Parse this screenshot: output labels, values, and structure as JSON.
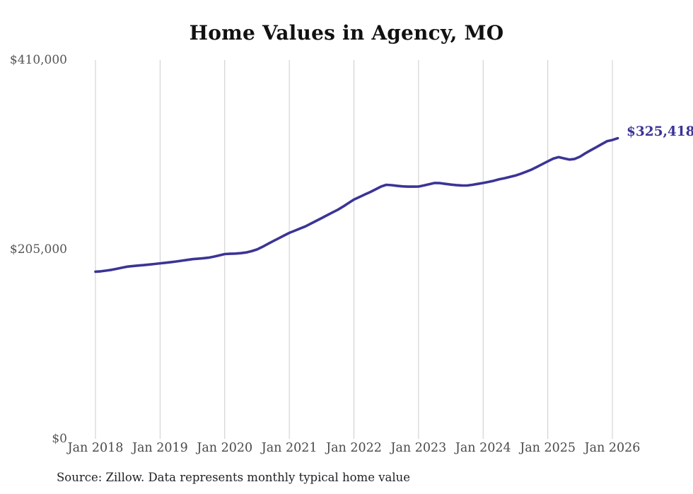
{
  "title": "Home Values in Agency, MO",
  "source_note": "Source: Zillow. Data represents monthly typical home value",
  "colors": {
    "line": "#3b3496",
    "end_label": "#3b3496",
    "grid": "#cccccc",
    "x_axis_text": "#4a4a4a",
    "y_axis_text": "#555555",
    "title_text": "#111111",
    "source_text": "#222222",
    "background": "#ffffff"
  },
  "chart_data": {
    "type": "line",
    "title": "Home Values in Agency, MO",
    "xlabel": "",
    "ylabel": "",
    "ylim": [
      0,
      410000
    ],
    "grid": "vertical-only",
    "legend": "none",
    "last_value_label": "$325,418",
    "last_value": 325418,
    "y_ticks": [
      {
        "label": "$0",
        "value": 0
      },
      {
        "label": "$205,000",
        "value": 205000
      },
      {
        "label": "$410,000",
        "value": 410000
      }
    ],
    "x_ticks": [
      {
        "label": "Jan 2018",
        "month_index": 0
      },
      {
        "label": "Jan 2019",
        "month_index": 12
      },
      {
        "label": "Jan 2020",
        "month_index": 24
      },
      {
        "label": "Jan 2021",
        "month_index": 36
      },
      {
        "label": "Jan 2022",
        "month_index": 48
      },
      {
        "label": "Jan 2023",
        "month_index": 60
      },
      {
        "label": "Jan 2024",
        "month_index": 72
      },
      {
        "label": "Jan 2025",
        "month_index": 84
      },
      {
        "label": "Jan 2026",
        "month_index": 96
      }
    ],
    "series": [
      {
        "name": "Typical home value",
        "start": "Jan 2018",
        "frequency": "monthly",
        "values": [
          181000,
          181400,
          182100,
          183000,
          184200,
          185400,
          186500,
          187100,
          187600,
          188100,
          188700,
          189300,
          190000,
          190600,
          191300,
          192000,
          192800,
          193700,
          194500,
          195000,
          195500,
          196100,
          197300,
          198600,
          200000,
          200300,
          200600,
          201000,
          201800,
          203200,
          205000,
          207800,
          211000,
          214000,
          217000,
          220000,
          223000,
          225300,
          227700,
          230000,
          233000,
          236000,
          239000,
          242000,
          245000,
          248000,
          251500,
          255300,
          259000,
          261700,
          264400,
          267000,
          270000,
          273000,
          275000,
          274600,
          273900,
          273300,
          273000,
          273000,
          273100,
          274300,
          275700,
          277000,
          276800,
          276000,
          275200,
          274700,
          274300,
          274200,
          275000,
          276000,
          277000,
          278100,
          279400,
          281000,
          282200,
          283600,
          285000,
          287000,
          289200,
          291500,
          294400,
          297400,
          300400,
          303300,
          305000,
          303600,
          302300,
          303000,
          305500,
          309200,
          312500,
          315700,
          319000,
          322200,
          323500,
          325418
        ]
      }
    ]
  }
}
